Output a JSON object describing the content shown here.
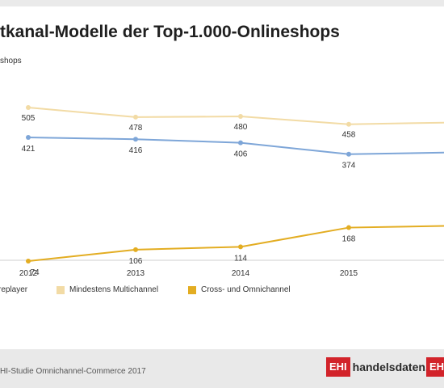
{
  "header": {
    "title": "tkanal-Modelle der Top-1.000-Onlineshops",
    "ylabel": "shops"
  },
  "colors": {
    "pureplayer": "#7ea6d8",
    "multichannel": "#f2dba5",
    "omnichannel": "#e3ad22"
  },
  "chart_data": {
    "type": "line",
    "x": [
      "2012",
      "2013",
      "2014",
      "2015"
    ],
    "series": [
      {
        "name": "Mindestens Multichannel",
        "values": [
          505,
          478,
          480,
          458
        ]
      },
      {
        "name": "Pureplayer",
        "values": [
          421,
          416,
          406,
          374
        ]
      },
      {
        "name": "Cross- und Omnichannel",
        "values": [
          74,
          106,
          114,
          168
        ]
      }
    ],
    "legend": [
      "replayer",
      "Mindestens Multichannel",
      "Cross- und Omnichannel"
    ],
    "legend_placement": "bottom",
    "grid": false
  },
  "footer": {
    "source": "HI-Studie Omnichannel-Commerce 2017",
    "logo1_box": "EHI",
    "logo1_text": "handelsdaten.de",
    "logo2_box": "EHI"
  }
}
